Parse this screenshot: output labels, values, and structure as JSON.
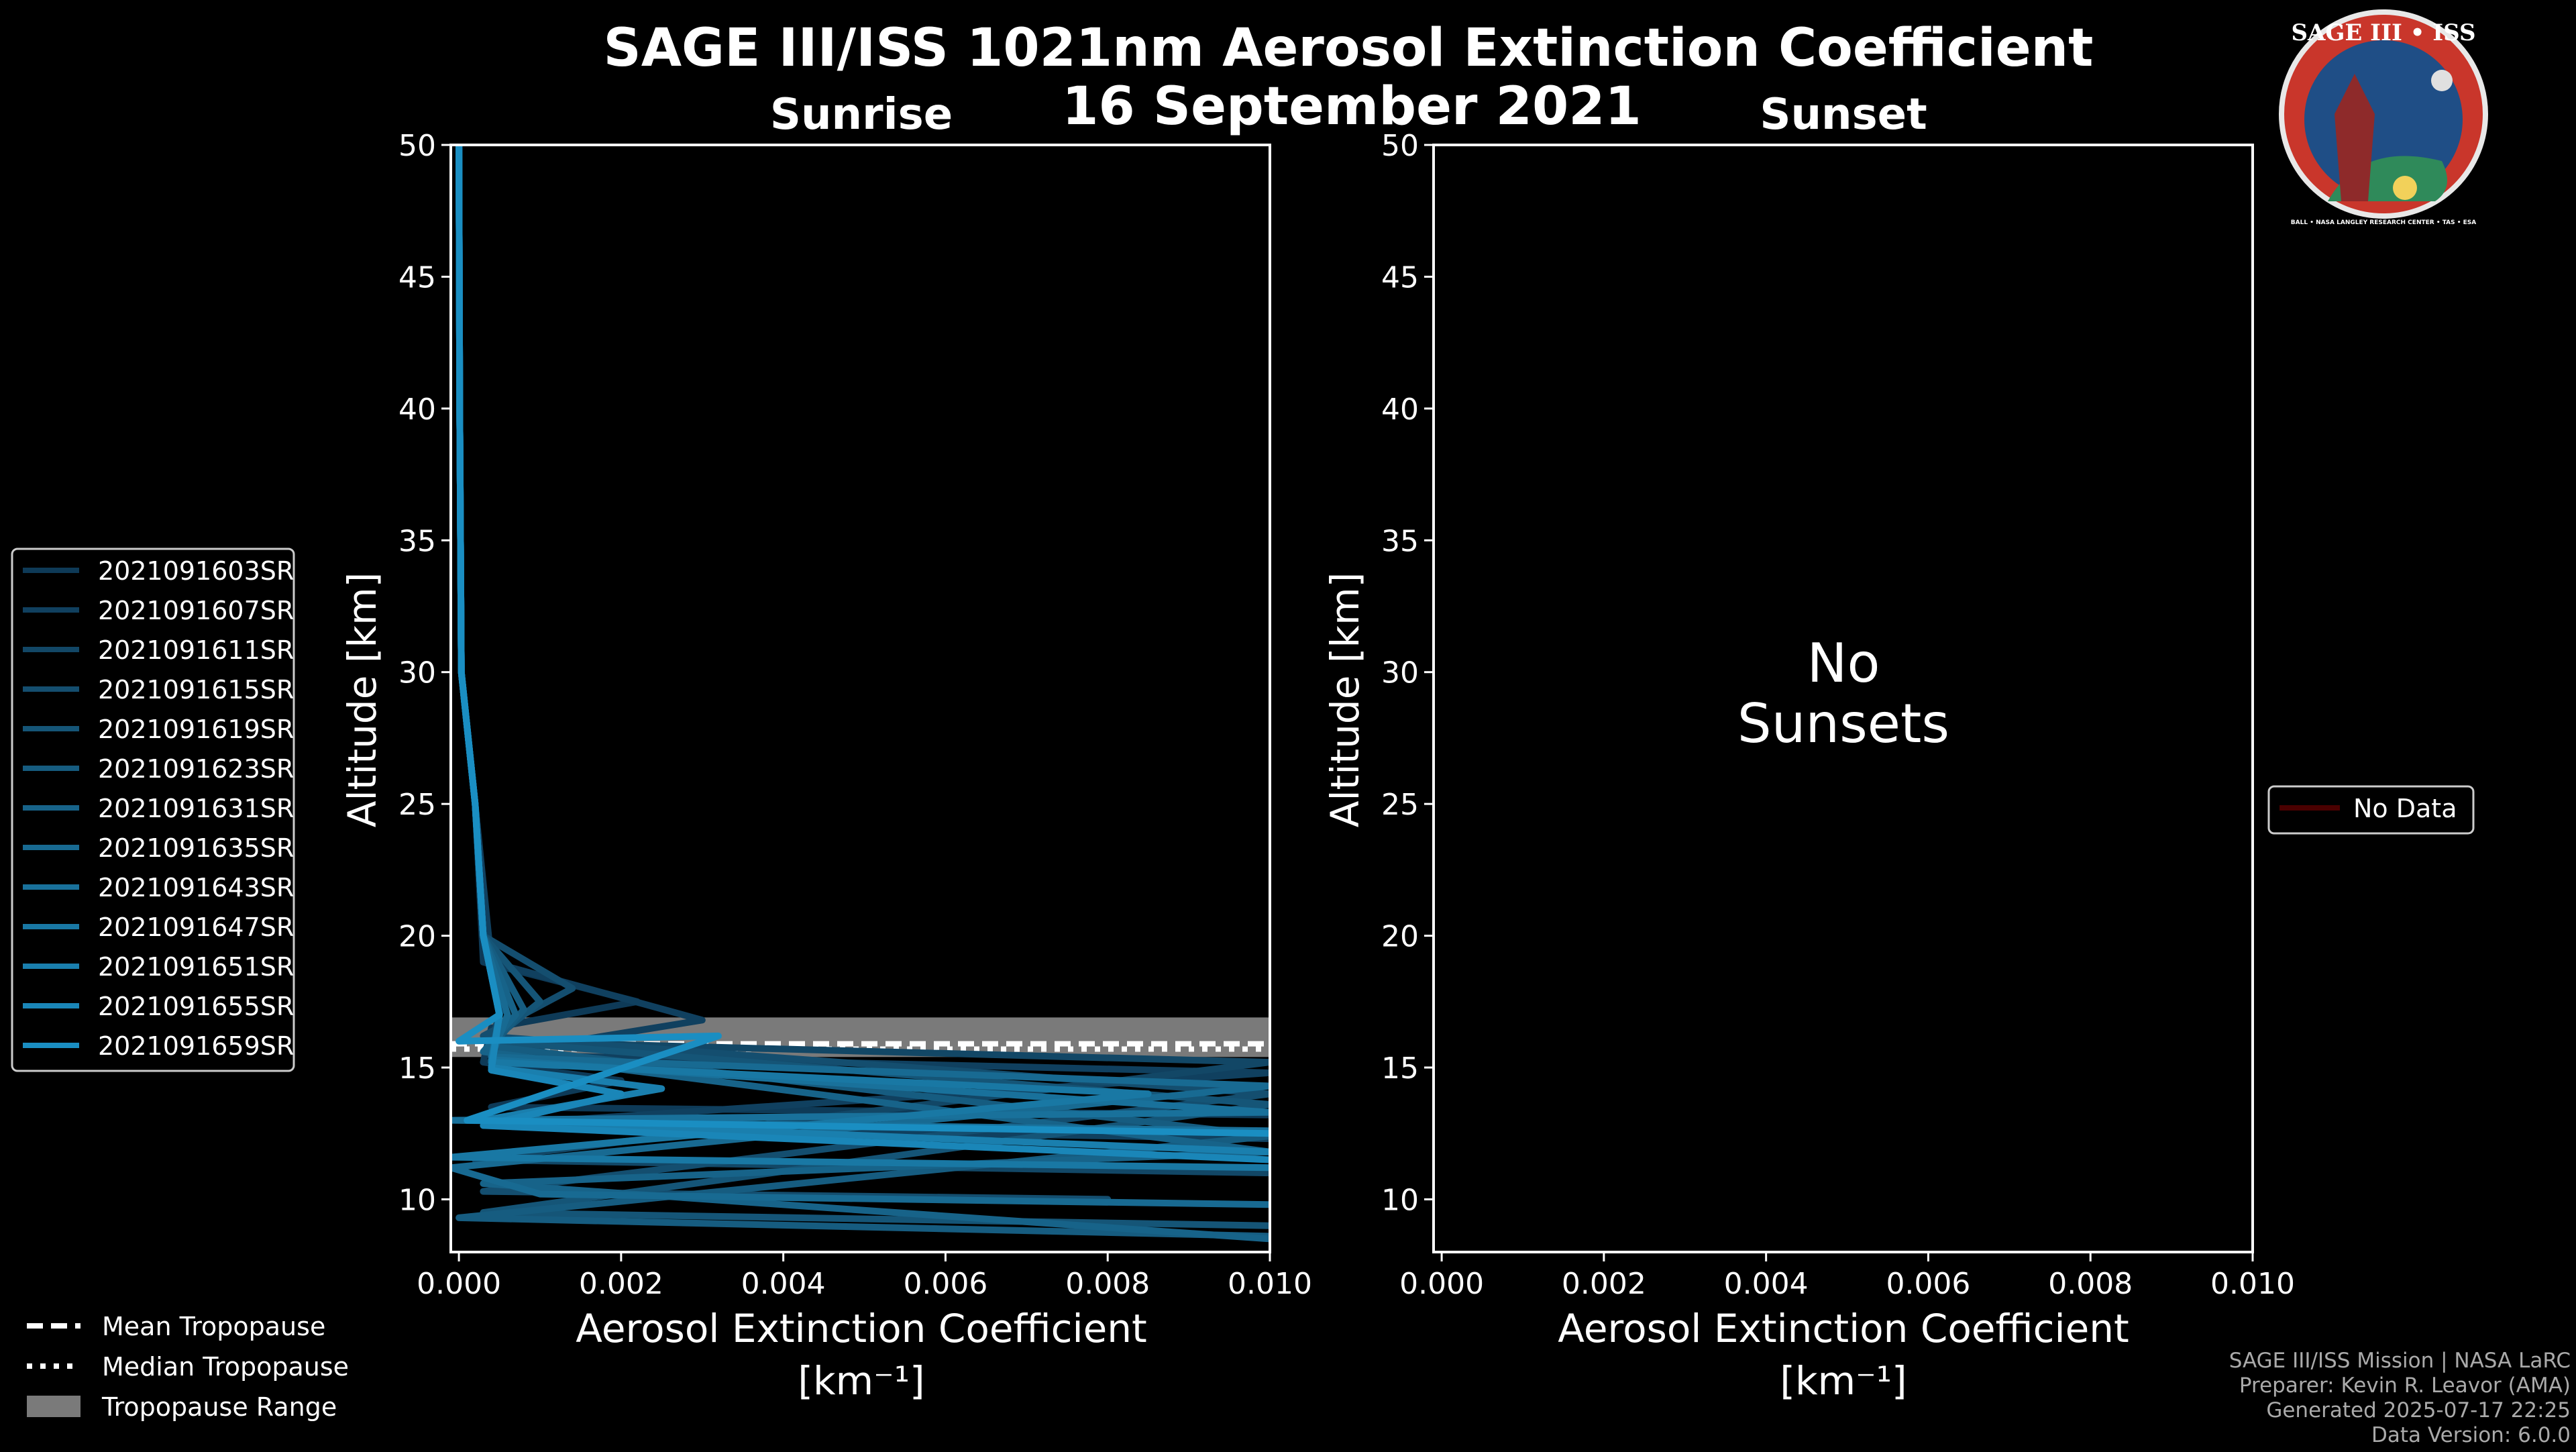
{
  "header": {
    "title": "SAGE III/ISS 1021nm Aerosol Extinction Coefficient",
    "date": "16 September 2021",
    "sunrise_label": "Sunrise",
    "sunset_label": "Sunset"
  },
  "badge": {
    "name": "SAGE III • ISS",
    "ring_text": "BALL • NASA LANGLEY RESEARCH CENTER • TAS • ESA"
  },
  "chart_data": [
    {
      "type": "line",
      "panel": "sunrise",
      "title": "Sunrise",
      "xlabel": "Aerosol Extinction Coefficient",
      "xlabel_units": "[km⁻¹]",
      "ylabel": "Altitude [km]",
      "xlim": [
        -0.0001,
        0.01
      ],
      "ylim": [
        8,
        50
      ],
      "xticks": [
        "0.000",
        "0.002",
        "0.004",
        "0.006",
        "0.008",
        "0.010"
      ],
      "yticks": [
        "10",
        "15",
        "20",
        "25",
        "30",
        "35",
        "40",
        "45",
        "50"
      ],
      "tropopause": {
        "mean": 15.9,
        "median": 15.7,
        "range": [
          15.4,
          16.9
        ]
      },
      "series": [
        {
          "name": "2021091603SR",
          "color": "#0e3a57",
          "x": [
            0.0,
            1e-05,
            3e-05,
            0.0002,
            0.0003,
            0.0022,
            0.0004,
            0.0003,
            0.002,
            0.0004,
            0.01
          ],
          "y": [
            50,
            40,
            30,
            25,
            19,
            17.5,
            16.5,
            15.2,
            14.5,
            13.5,
            13.2
          ]
        },
        {
          "name": "2021091607SR",
          "color": "#10405f",
          "x": [
            0.0,
            1e-05,
            3e-05,
            0.0002,
            0.0004,
            0.003,
            0.0004,
            0.01,
            0.0003,
            0.01
          ],
          "y": [
            50,
            40,
            30,
            25,
            19,
            16.8,
            15.5,
            14.8,
            12.8,
            12.3
          ]
        },
        {
          "name": "2021091611SR",
          "color": "#124766",
          "x": [
            0.0,
            1e-05,
            3e-05,
            0.0002,
            0.0003,
            0.0006,
            0.0004,
            0.01,
            0.0002,
            0.01
          ],
          "y": [
            50,
            40,
            30,
            25,
            20,
            18,
            16,
            15.2,
            11.5,
            11.0
          ]
        },
        {
          "name": "2021091615SR",
          "color": "#144e6f",
          "x": [
            0.0,
            1e-05,
            3e-05,
            0.0002,
            0.0003,
            0.0014,
            0.0003,
            0.01,
            0.0003,
            0.008
          ],
          "y": [
            50,
            40,
            30,
            25,
            20,
            18,
            16.2,
            14.0,
            10.3,
            10.0
          ]
        },
        {
          "name": "2021091619SR",
          "color": "#155577",
          "x": [
            0.0,
            1e-05,
            3e-05,
            0.0002,
            0.0003,
            0.001,
            0.0004,
            0.01,
            0.0003,
            0.01
          ],
          "y": [
            50,
            40,
            30,
            25,
            20,
            17.5,
            16,
            13.6,
            9.5,
            9.0
          ]
        },
        {
          "name": "2021091623SR",
          "color": "#165c80",
          "x": [
            0.0,
            1e-05,
            3e-05,
            0.0002,
            0.0003,
            0.0008,
            0.0004,
            0.01,
            0.0,
            0.01
          ],
          "y": [
            50,
            40,
            30,
            25,
            20,
            17.2,
            15.8,
            12.4,
            9.3,
            8.6
          ]
        },
        {
          "name": "2021091631SR",
          "color": "#176389",
          "x": [
            0.0,
            1e-05,
            3e-05,
            0.0002,
            0.0003,
            0.0007,
            0.0003,
            0.01,
            0.0003,
            0.01
          ],
          "y": [
            50,
            40,
            30,
            25,
            20,
            17,
            15.6,
            11.8,
            10.6,
            8.5
          ]
        },
        {
          "name": "2021091635SR",
          "color": "#186a92",
          "x": [
            0.0,
            1e-05,
            3e-05,
            0.0002,
            0.0003,
            0.0006,
            0.0004,
            0.01,
            -0.0001,
            0.001,
            0.01
          ],
          "y": [
            50,
            40,
            30,
            25,
            20,
            17,
            15.4,
            14.3,
            11.2,
            10.2,
            9.8
          ]
        },
        {
          "name": "2021091643SR",
          "color": "#19719b",
          "x": [
            0.0,
            1e-05,
            3e-05,
            0.0002,
            0.0003,
            0.0005,
            0.0004,
            0.01,
            -0.0001,
            0.01
          ],
          "y": [
            50,
            40,
            30,
            25,
            20,
            17,
            15.3,
            13.3,
            13.0,
            12.6
          ]
        },
        {
          "name": "2021091647SR",
          "color": "#1978a4",
          "x": [
            0.0,
            1e-05,
            3e-05,
            0.0002,
            0.0003,
            0.0005,
            0.0004,
            0.0085,
            -0.0001,
            0.01
          ],
          "y": [
            50,
            40,
            30,
            25,
            20,
            17,
            15.2,
            14.0,
            11.6,
            11.2
          ]
        },
        {
          "name": "2021091651SR",
          "color": "#1a7fae",
          "x": [
            0.0,
            1e-05,
            3e-05,
            0.0002,
            0.0003,
            0.0005,
            0.0004,
            0.0025,
            0.0003,
            0.01
          ],
          "y": [
            50,
            40,
            30,
            25,
            20,
            17,
            15.0,
            14.2,
            13.0,
            11.8
          ]
        },
        {
          "name": "2021091655SR",
          "color": "#1a86b8",
          "x": [
            0.0,
            1e-05,
            3e-05,
            0.0002,
            0.0003,
            0.0005,
            0.0004,
            0.002,
            0.0003,
            0.01
          ],
          "y": [
            50,
            40,
            30,
            25,
            20,
            17,
            14.9,
            14.0,
            12.8,
            11.5
          ]
        },
        {
          "name": "2021091659SR",
          "color": "#1a8ec2",
          "x": [
            0.0,
            1e-05,
            3e-05,
            0.0002,
            0.0003,
            0.0005,
            0.0,
            0.0032,
            0.0001,
            0.01
          ],
          "y": [
            50,
            40,
            30,
            25,
            20,
            17,
            16.0,
            16.2,
            13.0,
            12.5
          ]
        }
      ],
      "legend": {
        "placement": "left-middle",
        "entries": [
          "2021091603SR",
          "2021091607SR",
          "2021091611SR",
          "2021091615SR",
          "2021091619SR",
          "2021091623SR",
          "2021091631SR",
          "2021091635SR",
          "2021091643SR",
          "2021091647SR",
          "2021091651SR",
          "2021091655SR",
          "2021091659SR"
        ]
      }
    },
    {
      "type": "line",
      "panel": "sunset",
      "title": "Sunset",
      "xlabel": "Aerosol Extinction Coefficient",
      "xlabel_units": "[km⁻¹]",
      "ylabel": "Altitude [km]",
      "xlim": [
        -0.0001,
        0.01
      ],
      "ylim": [
        8,
        50
      ],
      "xticks": [
        "0.000",
        "0.002",
        "0.004",
        "0.006",
        "0.008",
        "0.010"
      ],
      "yticks": [
        "10",
        "15",
        "20",
        "25",
        "30",
        "35",
        "40",
        "45",
        "50"
      ],
      "annotation_line1": "No",
      "annotation_line2": "Sunsets",
      "series": [],
      "legend": {
        "placement": "right-middle",
        "entries": [
          "No Data"
        ],
        "color": "#4a0000"
      }
    }
  ],
  "tropopause_legend": {
    "mean": "Mean Tropopause",
    "median": "Median Tropopause",
    "range": "Tropopause Range"
  },
  "footer": {
    "line1": "SAGE III/ISS Mission | NASA LaRC",
    "line2": "Preparer: Kevin R. Leavor (AMA)",
    "line3": "Generated 2025-07-17 22:25",
    "line4": "Data Version: 6.0.0"
  }
}
